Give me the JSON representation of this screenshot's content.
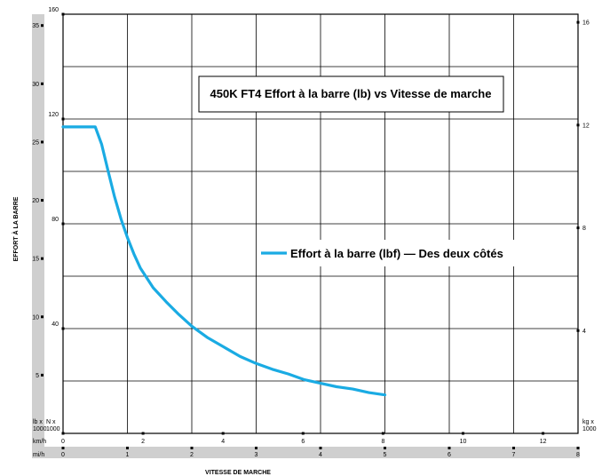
{
  "chart_data": {
    "type": "line",
    "title": "450K FT4 Effort à la barre (lb) vs Vitesse de marche",
    "xlabel": "VITESSE DE MARCHE",
    "ylabel": "EFFORT À LA BARRE",
    "x_unit_mph": "mi/h",
    "x_unit_kmh": "km/h",
    "y_unit_lb": "lb x\n1000",
    "y_unit_n": "N x\n1000",
    "y_unit_kg": "kg x\n1000",
    "xlim_mph": [
      0,
      8
    ],
    "ylim_n": [
      0,
      160
    ],
    "grid": true,
    "legend_position": "right-center",
    "series": [
      {
        "name": "Effort à la barre (lbf) — Des deux côtés",
        "color": "#1aabe3",
        "x": [
          0,
          0.1,
          0.2,
          0.3,
          0.4,
          0.5,
          0.6,
          0.7,
          0.8,
          0.9,
          1.0,
          1.1,
          1.2,
          1.4,
          1.6,
          1.8,
          2.0,
          2.25,
          2.5,
          2.75,
          3.0,
          3.25,
          3.5,
          3.75,
          4.0,
          4.25,
          4.5,
          4.75,
          5.0
        ],
        "y": [
          26.3,
          26.3,
          26.3,
          26.3,
          26.3,
          26.3,
          24.8,
          22.5,
          20.3,
          18.4,
          16.8,
          15.4,
          14.2,
          12.5,
          11.3,
          10.2,
          9.2,
          8.2,
          7.4,
          6.6,
          6.0,
          5.5,
          5.1,
          4.6,
          4.3,
          4.0,
          3.8,
          3.5,
          3.3
        ]
      }
    ],
    "y_ticks_lb": [
      "5",
      "10",
      "15",
      "20",
      "25",
      "30",
      "35"
    ],
    "y_ticks_n": [
      "40",
      "80",
      "120",
      "160"
    ],
    "y_ticks_kg": [
      "4",
      "8",
      "12",
      "16"
    ],
    "x_ticks_mph": [
      "0",
      "1",
      "2",
      "3",
      "4",
      "5",
      "6",
      "7",
      "8"
    ],
    "x_ticks_kmh": [
      "0",
      "2",
      "4",
      "6",
      "8",
      "10",
      "12"
    ]
  }
}
